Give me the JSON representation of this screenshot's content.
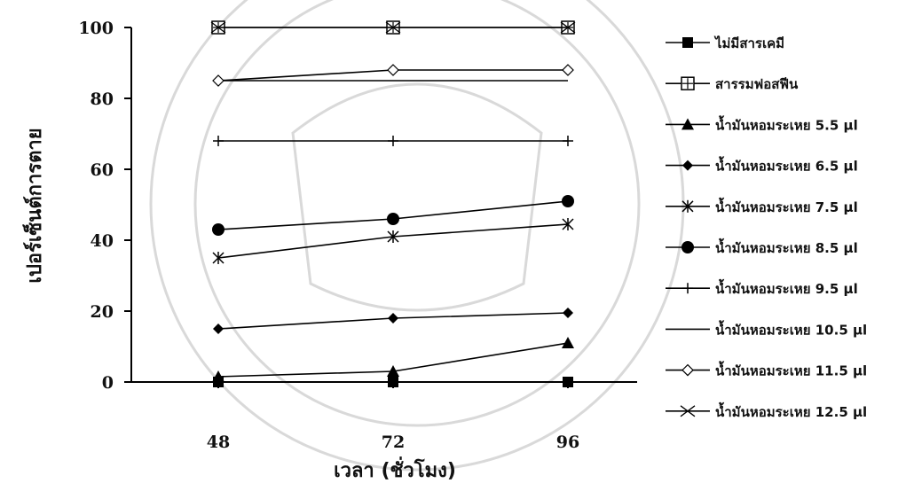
{
  "chart_data": {
    "type": "line",
    "title": "",
    "xlabel": "เวลา (ชั่วโมง)",
    "ylabel": "เปอร์เซ็นต์การตาย",
    "x": [
      48,
      72,
      96
    ],
    "x_tick_labels": [
      "48",
      "72",
      "96"
    ],
    "ylim": [
      0,
      100
    ],
    "y_ticks": [
      0,
      20,
      40,
      60,
      80,
      100
    ],
    "grid": false,
    "legend_position": "right",
    "series": [
      {
        "name": "ไม่มีสารเคมี",
        "marker": "square-filled",
        "values": [
          0,
          0,
          0
        ]
      },
      {
        "name": "สารรมฟอสฟีน",
        "marker": "square-open",
        "values": [
          100,
          100,
          100
        ]
      },
      {
        "name": "น้ำมันหอมระเหย 5.5 µl",
        "marker": "triangle-filled",
        "values": [
          1.5,
          3,
          11
        ]
      },
      {
        "name": "น้ำมันหอมระเหย 6.5 µl",
        "marker": "diamond-filled",
        "values": [
          15,
          18,
          19.5
        ]
      },
      {
        "name": "น้ำมันหอมระเหย 7.5 µl",
        "marker": "asterisk",
        "values": [
          35,
          41,
          44.5
        ]
      },
      {
        "name": "น้ำมันหอมระเหย 8.5 µl",
        "marker": "circle-filled",
        "values": [
          43,
          46,
          51
        ]
      },
      {
        "name": "น้ำมันหอมระเหย 9.5 µl",
        "marker": "plus",
        "values": [
          68,
          68,
          68
        ]
      },
      {
        "name": "น้ำมันหอมระเหย 10.5 µl",
        "marker": "none",
        "values": [
          85,
          85,
          85
        ]
      },
      {
        "name": "น้ำมันหอมระเหย 11.5 µl",
        "marker": "diamond-open",
        "values": [
          85,
          88,
          88
        ]
      },
      {
        "name": "น้ำมันหอมระเหย 12.5 µl",
        "marker": "x",
        "values": [
          100,
          100,
          100
        ]
      }
    ]
  }
}
